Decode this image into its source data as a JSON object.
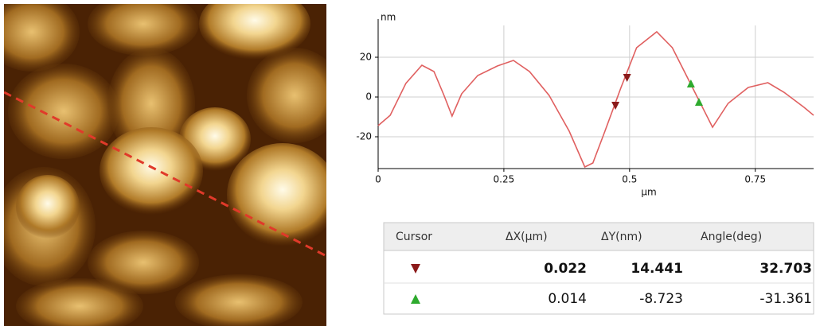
{
  "chart_data": {
    "type": "line",
    "y_label": "nm",
    "x_label": "µm",
    "xlim": [
      0,
      0.866
    ],
    "ylim": [
      -36,
      36
    ],
    "xticks": [
      0,
      0.25,
      0.5,
      0.75
    ],
    "yticks": [
      20,
      0,
      -20
    ],
    "grid": true,
    "series": [
      {
        "color": "#e06060",
        "x": [
          0,
          0.024,
          0.055,
          0.087,
          0.111,
          0.131,
          0.147,
          0.166,
          0.198,
          0.237,
          0.269,
          0.301,
          0.34,
          0.38,
          0.411,
          0.427,
          0.451,
          0.483,
          0.514,
          0.554,
          0.585,
          0.625,
          0.665,
          0.696,
          0.736,
          0.775,
          0.807,
          0.847,
          0.866
        ],
        "values": [
          -14.4,
          -9.2,
          6.8,
          16,
          12.8,
          0.8,
          -9.6,
          1.6,
          10.8,
          15.6,
          18.4,
          12.8,
          0.8,
          -17.2,
          -35.2,
          -33.2,
          -17.2,
          4.8,
          24.8,
          32.8,
          24.8,
          4.8,
          -15.2,
          -3.2,
          4.8,
          7.2,
          2.4,
          -5.2,
          -9.2
        ]
      }
    ],
    "markers": [
      {
        "color": "#8b1a1a",
        "shape": "down",
        "x": [
          0.472,
          0.495
        ],
        "values": [
          -4.4,
          9.6
        ]
      },
      {
        "color": "#2eaa2e",
        "shape": "up",
        "x": [
          0.622,
          0.638
        ],
        "values": [
          6.8,
          -2.4
        ]
      }
    ]
  },
  "table": {
    "header": [
      "Cursor",
      "ΔX(µm)",
      "ΔY(nm)",
      "Angle(deg)"
    ],
    "rows": [
      {
        "color": "#8b1a1a",
        "shape": "down",
        "cells": [
          "0.022",
          "14.441",
          "32.703"
        ]
      },
      {
        "color": "#2eaa2e",
        "shape": "up",
        "cells": [
          "0.014",
          "-8.723",
          "-31.361"
        ]
      }
    ]
  }
}
